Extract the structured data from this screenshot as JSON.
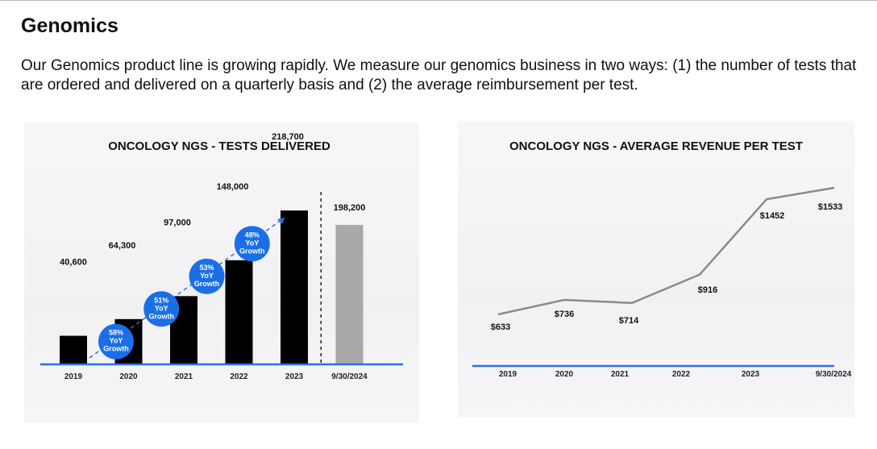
{
  "page": {
    "heading": "Genomics",
    "intro": "Our Genomics product line is growing rapidly.  We measure our genomics business in two ways: (1) the number of tests that are ordered and delivered on a quarterly basis and (2) the average reimbursement per test."
  },
  "chart_data": [
    {
      "type": "bar",
      "title": "ONCOLOGY NGS - TESTS DELIVERED",
      "categories": [
        "2019",
        "2020",
        "2021",
        "2022",
        "2023",
        "9/30/2024"
      ],
      "values": [
        40600,
        64300,
        97000,
        148000,
        218700,
        198200
      ],
      "value_labels": [
        "40,600",
        "64,300",
        "97,000",
        "148,000",
        "218,700",
        "198,200"
      ],
      "ylim": [
        0,
        220000
      ],
      "grid": false,
      "colors": {
        "bar": "#000000",
        "latest_bar": "#a9a9a9",
        "baseline": "#2f6fe0",
        "badge": "#1a6fe8",
        "arrow": "#2f6fe0"
      },
      "growth_badges": [
        {
          "between": [
            "2019",
            "2020"
          ],
          "pct": "58%",
          "l1": "YoY",
          "l2": "Growth"
        },
        {
          "between": [
            "2020",
            "2021"
          ],
          "pct": "51%",
          "l1": "YoY",
          "l2": "Growth"
        },
        {
          "between": [
            "2021",
            "2022"
          ],
          "pct": "53%",
          "l1": "YoY",
          "l2": "Growth"
        },
        {
          "between": [
            "2022",
            "2023"
          ],
          "pct": "48%",
          "l1": "YoY",
          "l2": "Growth"
        }
      ]
    },
    {
      "type": "line",
      "title": "ONCOLOGY NGS - AVERAGE REVENUE PER TEST",
      "categories": [
        "2019",
        "2020",
        "2021",
        "2022",
        "2023",
        "9/30/2024"
      ],
      "values": [
        633,
        736,
        714,
        916,
        1452,
        1533
      ],
      "value_labels": [
        "$633",
        "$736",
        "$714",
        "$916",
        "$1452",
        "$1533"
      ],
      "ylim": [
        0,
        1600
      ],
      "grid": false,
      "colors": {
        "line": "#8a8a8a",
        "baseline": "#2f6fe0"
      }
    }
  ]
}
